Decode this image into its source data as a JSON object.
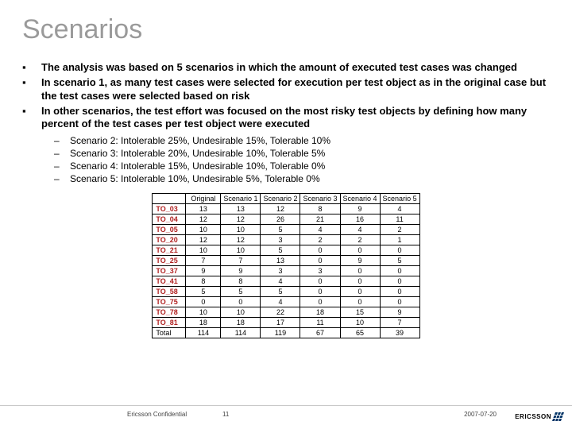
{
  "title": "Scenarios",
  "bullets": [
    "The analysis was based on 5 scenarios in which the amount of executed test cases was changed",
    "In scenario 1, as many test cases were selected for execution per test object as in the original case but the test cases were selected based on risk",
    "In other scenarios, the test effort was focused on the most risky test objects by defining how many percent of the test cases per test object were executed"
  ],
  "sub_bullets": [
    "Scenario 2: Intolerable 25%, Undesirable 15%, Tolerable 10%",
    "Scenario 3: Intolerable 20%, Undesirable 10%, Tolerable 5%",
    "Scenario 4: Intolerable 15%, Undesirable 10%, Tolerable 0%",
    "Scenario 5: Intolerable 10%, Undesirable 5%, Tolerable 0%"
  ],
  "table": {
    "columns": [
      "",
      "Original",
      "Scenario 1",
      "Scenario 2",
      "Scenario 3",
      "Scenario 4",
      "Scenario 5"
    ],
    "rows": [
      [
        "TO_03",
        "13",
        "13",
        "12",
        "8",
        "9",
        "4"
      ],
      [
        "TO_04",
        "12",
        "12",
        "26",
        "21",
        "16",
        "11"
      ],
      [
        "TO_05",
        "10",
        "10",
        "5",
        "4",
        "4",
        "2"
      ],
      [
        "TO_20",
        "12",
        "12",
        "3",
        "2",
        "2",
        "1"
      ],
      [
        "TO_21",
        "10",
        "10",
        "5",
        "0",
        "0",
        "0"
      ],
      [
        "TO_25",
        "7",
        "7",
        "13",
        "0",
        "9",
        "5"
      ],
      [
        "TO_37",
        "9",
        "9",
        "3",
        "3",
        "0",
        "0"
      ],
      [
        "TO_41",
        "8",
        "8",
        "4",
        "0",
        "0",
        "0"
      ],
      [
        "TO_58",
        "5",
        "5",
        "5",
        "0",
        "0",
        "0"
      ],
      [
        "TO_75",
        "0",
        "0",
        "4",
        "0",
        "0",
        "0"
      ],
      [
        "TO_78",
        "10",
        "10",
        "22",
        "18",
        "15",
        "9"
      ],
      [
        "TO_81",
        "18",
        "18",
        "17",
        "11",
        "10",
        "7"
      ],
      [
        "Total",
        "114",
        "114",
        "119",
        "67",
        "65",
        "39"
      ]
    ],
    "rowhdr_color": "#b02020",
    "border_color": "#000000",
    "fontsize": 9
  },
  "footer": {
    "left": "Ericsson Confidential",
    "page": "11",
    "date": "2007-07-20",
    "brand": "ERICSSON"
  },
  "colors": {
    "title": "#9a9a9a",
    "text": "#000000",
    "footer_rule": "#c8c8c8",
    "brand_mark": "#003366"
  }
}
